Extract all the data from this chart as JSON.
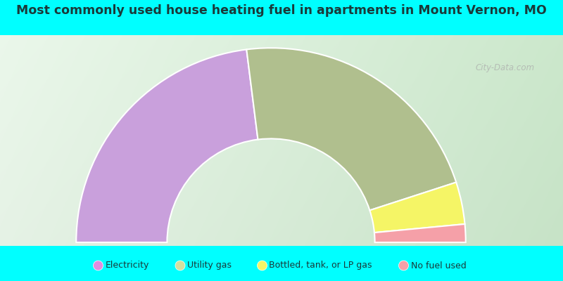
{
  "title": "Most commonly used house heating fuel in apartments in Mount Vernon, MO",
  "title_color": "#1a3a3a",
  "background_color": "#00FFFF",
  "segments": [
    {
      "label": "Electricity",
      "value": 46,
      "color": "#c9a0dc"
    },
    {
      "label": "Utility gas",
      "value": 44,
      "color": "#b0bf8e"
    },
    {
      "label": "Bottled, tank, or LP gas",
      "value": 7,
      "color": "#f5f566"
    },
    {
      "label": "No fuel used",
      "value": 3,
      "color": "#f5a0a8"
    }
  ],
  "legend_colors": [
    "#e08de0",
    "#d4e0a0",
    "#f5f566",
    "#f5a0a8"
  ],
  "legend_labels": [
    "Electricity",
    "Utility gas",
    "Bottled, tank, or LP gas",
    "No fuel used"
  ],
  "watermark": "City-Data.com",
  "outer_r": 1.35,
  "inner_r": 0.72
}
